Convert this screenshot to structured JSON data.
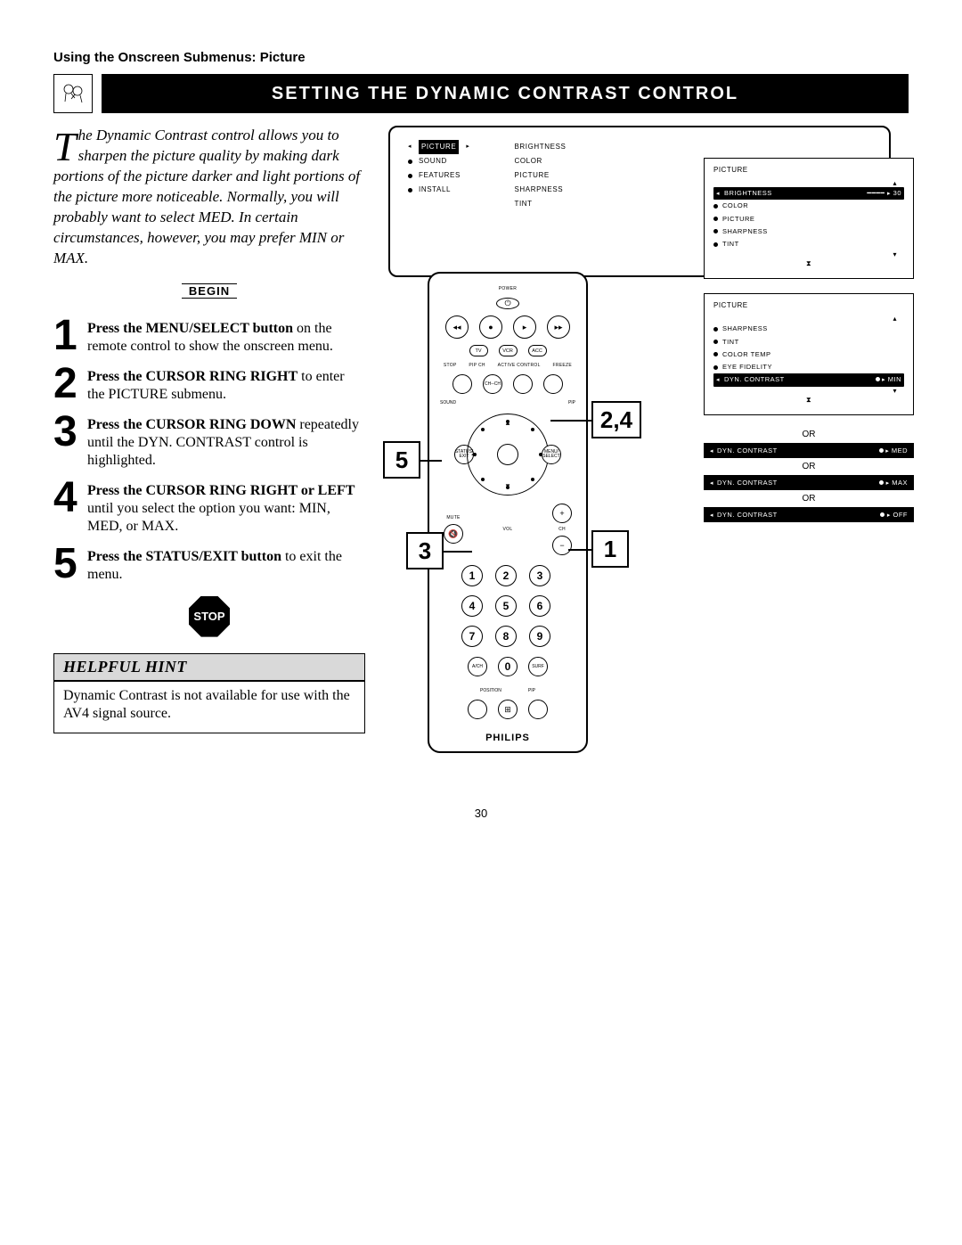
{
  "section_label": "Using the Onscreen Submenus: Picture",
  "title": "SETTING THE DYNAMIC CONTRAST CONTROL",
  "intro": {
    "dropcap": "T",
    "text": "he Dynamic Contrast control allows you to sharpen the picture quality by making dark portions of the picture darker and light portions of the picture more noticeable. Normally, you will probably want to select MED. In certain circumstances, however, you may prefer MIN or MAX."
  },
  "begin_label": "BEGIN",
  "steps": [
    {
      "n": "1",
      "bold": "Press the MENU/SELECT button",
      "rest": " on the remote control to show the onscreen menu."
    },
    {
      "n": "2",
      "bold": "Press the CURSOR RING RIGHT",
      "rest": " to enter the PICTURE submenu."
    },
    {
      "n": "3",
      "bold": "Press the CURSOR RING DOWN",
      "rest": " repeatedly until the DYN. CONTRAST control is highlighted."
    },
    {
      "n": "4",
      "bold": "Press the CURSOR RING RIGHT or LEFT",
      "rest": " until you select the option you want: MIN, MED, or MAX."
    },
    {
      "n": "5",
      "bold": "Press the STATUS/EXIT button",
      "rest": " to exit the menu."
    }
  ],
  "stop_label": "STOP",
  "hint": {
    "header": "HELPFUL HINT",
    "body": "Dynamic Contrast is not available for use with the AV4 signal source."
  },
  "main_menu": {
    "left": [
      {
        "label": "PICTURE",
        "selected": true
      },
      {
        "label": "SOUND",
        "selected": false
      },
      {
        "label": "FEATURES",
        "selected": false
      },
      {
        "label": "INSTALL",
        "selected": false
      }
    ],
    "right": [
      "BRIGHTNESS",
      "COLOR",
      "PICTURE",
      "SHARPNESS",
      "TINT"
    ]
  },
  "osd1": {
    "title": "PICTURE",
    "items": [
      {
        "label": "BRIGHTNESS",
        "selected": true,
        "val": "30"
      },
      {
        "label": "COLOR"
      },
      {
        "label": "PICTURE"
      },
      {
        "label": "SHARPNESS"
      },
      {
        "label": "TINT"
      }
    ]
  },
  "osd2": {
    "title": "PICTURE",
    "items": [
      {
        "label": "SHARPNESS"
      },
      {
        "label": "TINT"
      },
      {
        "label": "COLOR TEMP"
      },
      {
        "label": "EYE FIDELITY"
      },
      {
        "label": "DYN. CONTRAST",
        "selected": true,
        "val": "MIN"
      }
    ]
  },
  "osd_variants": [
    {
      "label": "DYN. CONTRAST",
      "val": "MED"
    },
    {
      "label": "DYN. CONTRAST",
      "val": "MAX"
    },
    {
      "label": "DYN. CONTRAST",
      "val": "OFF"
    }
  ],
  "or_label": "OR",
  "remote": {
    "power": "POWER",
    "tv": "TV",
    "vcr": "VCR",
    "acc": "ACC",
    "stop": "STOP",
    "pipch": "PIP CH",
    "active": "ACTIVE CONTROL",
    "freeze": "FREEZE",
    "sound": "SOUND",
    "pip": "PIP",
    "status": "STATUS/\nEXIT",
    "menu": "MENU/\nSELECT",
    "mute": "MUTE",
    "vol": "VOL",
    "ch": "CH",
    "keypad": [
      "1",
      "2",
      "3",
      "4",
      "5",
      "6",
      "7",
      "8",
      "9",
      "0"
    ],
    "tvvcr": "TV/VCR",
    "ach": "A/CH",
    "surf": "SURF",
    "position": "POSITION",
    "pip2": "PIP",
    "brand": "PHILIPS"
  },
  "callouts": {
    "c24": "2,4",
    "c5": "5",
    "c3": "3",
    "c1": "1"
  },
  "page_number": "30",
  "colors": {
    "black": "#000000",
    "white": "#ffffff",
    "gray": "#d9d9d9"
  }
}
